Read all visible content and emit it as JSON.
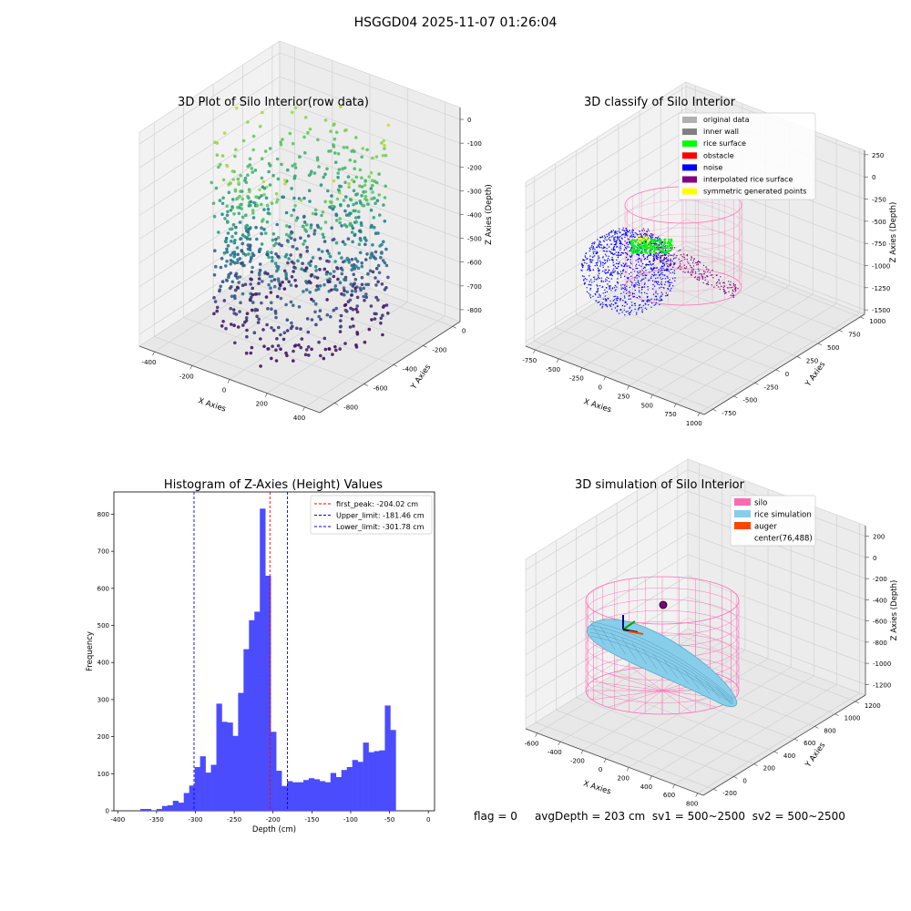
{
  "figure": {
    "suptitle": "HSGGD04 2025-11-07 01:26:04",
    "status": {
      "flag": "flag = 0",
      "avg_depth": "avgDepth = 203 cm",
      "sv1": "sv1 = 500~2500",
      "sv2": "sv2 = 500~2500"
    }
  },
  "colors": {
    "pane": "#f2f2f2",
    "pane_dark": "#e6e6e6",
    "grid": "#d6d6d6",
    "bar": "#4c4cff",
    "peak_line": "#ff0000",
    "limit_line": "#0000ff",
    "silo": "#ff69b4",
    "rice_sim": "#87ceeb",
    "auger": "#ff4500",
    "original": "#b0b0b0",
    "inner_wall": "#808080",
    "rice_surface": "#00ff00",
    "obstacle": "#ff0000",
    "noise": "#0000ff",
    "interpolated": "#800080",
    "symmetric": "#ffff00"
  },
  "chart_data": [
    {
      "id": "raw",
      "type": "scatter",
      "title": "3D Plot of Silo Interior(row data)",
      "xlabel": "X Axies",
      "ylabel": "Y Axies",
      "zlabel": "Z Axies (Depth)",
      "x_ticks": [
        "-400",
        "-200",
        "0",
        "200",
        "400"
      ],
      "y_ticks": [
        "-800",
        "-600",
        "-400",
        "-200",
        "0"
      ],
      "z_ticks": [
        "-800",
        "-700",
        "-600",
        "-500",
        "-400",
        "-300",
        "-200",
        "-100",
        "0"
      ],
      "x_range": [
        -480,
        480
      ],
      "y_range": [
        -900,
        50
      ],
      "z_range": [
        -850,
        50
      ],
      "colormap": "viridis"
    },
    {
      "id": "classify",
      "type": "scatter",
      "title": "3D classify of Silo Interior",
      "xlabel": "X Axies",
      "ylabel": "Y Axies",
      "zlabel": "Z Axies (Depth)",
      "x_ticks": [
        "-750",
        "-500",
        "-250",
        "0",
        "250",
        "500",
        "750",
        "1000"
      ],
      "y_ticks": [
        "-750",
        "-500",
        "-250",
        "0",
        "250",
        "500",
        "750",
        "1000"
      ],
      "z_ticks": [
        "-1500",
        "-1250",
        "-1000",
        "-750",
        "-500",
        "-250",
        "0",
        "250"
      ],
      "x_range": [
        -850,
        1050
      ],
      "y_range": [
        -850,
        1050
      ],
      "z_range": [
        -1550,
        300
      ],
      "legend": [
        "original data",
        "inner wall",
        "rice surface",
        "obstacle",
        "noise",
        "interpolated rice surface",
        "symmetric generated points"
      ],
      "legend_position": "top-right"
    },
    {
      "id": "hist",
      "type": "bar",
      "title": "Histogram of Z-Axies (Height) Values",
      "xlabel": "Depth (cm)",
      "ylabel": "Frequency",
      "x_ticks": [
        -400,
        -350,
        -300,
        -250,
        -200,
        -150,
        -100,
        -50,
        0
      ],
      "y_ticks": [
        0,
        100,
        200,
        300,
        400,
        500,
        600,
        700,
        800
      ],
      "xlim": [
        -405,
        8
      ],
      "ylim": [
        0,
        860
      ],
      "bin_width": 7,
      "bin_start": -371,
      "values": [
        5,
        5,
        0,
        5,
        13,
        15,
        27,
        22,
        48,
        68,
        118,
        147,
        103,
        124,
        289,
        240,
        238,
        202,
        318,
        436,
        514,
        537,
        815,
        634,
        213,
        108,
        67,
        80,
        77,
        77,
        83,
        88,
        85,
        80,
        77,
        102,
        91,
        110,
        118,
        137,
        132,
        184,
        158,
        161,
        163,
        284,
        218
      ],
      "lines": [
        {
          "x": -204.02,
          "color": "#ff0000",
          "label": "first_peak: -204.02 cm"
        },
        {
          "x": -181.46,
          "color": "#0000ff",
          "label": "Upper_limit: -181.46 cm"
        },
        {
          "x": -301.78,
          "color": "#0000ff",
          "label": "Lower_limit: -301.78 cm"
        }
      ],
      "legend_position": "top-right"
    },
    {
      "id": "sim",
      "type": "scatter",
      "title": "3D simulation of Silo Interior",
      "xlabel": "X Axies",
      "ylabel": "Y Axies",
      "zlabel": "Z Axies (Depth)",
      "x_ticks": [
        "-600",
        "-400",
        "-200",
        "0",
        "200",
        "400",
        "600",
        "800"
      ],
      "y_ticks": [
        "-200",
        "0",
        "200",
        "400",
        "600",
        "800",
        "1000",
        "1200"
      ],
      "z_ticks": [
        "-1200",
        "-1000",
        "-800",
        "-600",
        "-400",
        "-200",
        "0",
        "200"
      ],
      "x_range": [
        -700,
        850
      ],
      "y_range": [
        -300,
        1300
      ],
      "z_range": [
        -1300,
        300
      ],
      "legend": [
        "silo",
        "rice simulation",
        "auger",
        "center(76,488)"
      ],
      "legend_position": "top-right"
    }
  ]
}
